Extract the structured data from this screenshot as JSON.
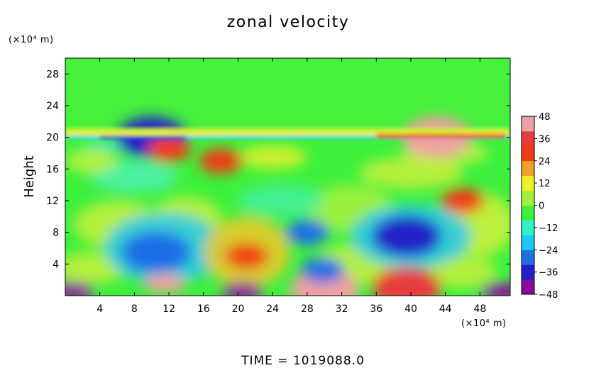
{
  "chart_data": {
    "type": "heatmap",
    "title": "zonal velocity",
    "ylabel": "Height",
    "xunit": "(×10⁴ m)",
    "yunit": "(×10⁴ m)",
    "xlim": [
      0,
      51.5
    ],
    "ylim": [
      0,
      30
    ],
    "x_ticks": [
      4,
      8,
      12,
      16,
      20,
      24,
      28,
      32,
      36,
      40,
      44,
      48
    ],
    "x_tick_labels": [
      "4",
      "8",
      "12",
      "16",
      "20",
      "24",
      "28",
      "32",
      "36",
      "40",
      "44",
      "48"
    ],
    "y_ticks": [
      4,
      8,
      12,
      16,
      20,
      24,
      28
    ],
    "y_tick_labels": [
      "4",
      "8",
      "12",
      "16",
      "20",
      "24",
      "28"
    ],
    "colorbar": {
      "min": -48,
      "max": 48,
      "ticks": [
        48,
        36,
        24,
        12,
        0,
        -12,
        -24,
        -36,
        -48
      ],
      "tick_labels": [
        "48",
        "36",
        "24",
        "12",
        "0",
        "−12",
        "−24",
        "−36",
        "−48"
      ],
      "colors": [
        "#8a0a9a",
        "#2020c8",
        "#1e6ee6",
        "#1ec8f0",
        "#32f0c8",
        "#3cf03c",
        "#a0f03c",
        "#f0f028",
        "#f0a028",
        "#f03c14",
        "#e63c3c",
        "#f0a0a0"
      ]
    },
    "features": [
      {
        "x": 10.5,
        "y": 5.5,
        "value": -32
      },
      {
        "x": 39.5,
        "y": 7.5,
        "value": -40
      },
      {
        "x": 21.0,
        "y": 5.0,
        "value": 28
      },
      {
        "x": 11.5,
        "y": 1.5,
        "value": 44
      },
      {
        "x": 20.5,
        "y": 0.5,
        "value": -48
      },
      {
        "x": 1.0,
        "y": 0.5,
        "value": -44
      },
      {
        "x": 30.0,
        "y": 0.8,
        "value": 40
      },
      {
        "x": 39.5,
        "y": 1.0,
        "value": 36
      },
      {
        "x": 29.8,
        "y": 3.2,
        "value": -28
      },
      {
        "x": 28.0,
        "y": 8.0,
        "value": -26
      },
      {
        "x": 43.0,
        "y": 20.0,
        "value": 40
      },
      {
        "x": 10.0,
        "y": 20.0,
        "value": -36
      },
      {
        "x": 12.0,
        "y": 18.5,
        "value": 30
      },
      {
        "x": 18.0,
        "y": 17.0,
        "value": 28
      },
      {
        "x": 46.0,
        "y": 12.0,
        "value": 24
      },
      {
        "x": 50.5,
        "y": 0.5,
        "value": -44
      }
    ]
  },
  "footer": {
    "time_label": "TIME = 1019088.0"
  }
}
